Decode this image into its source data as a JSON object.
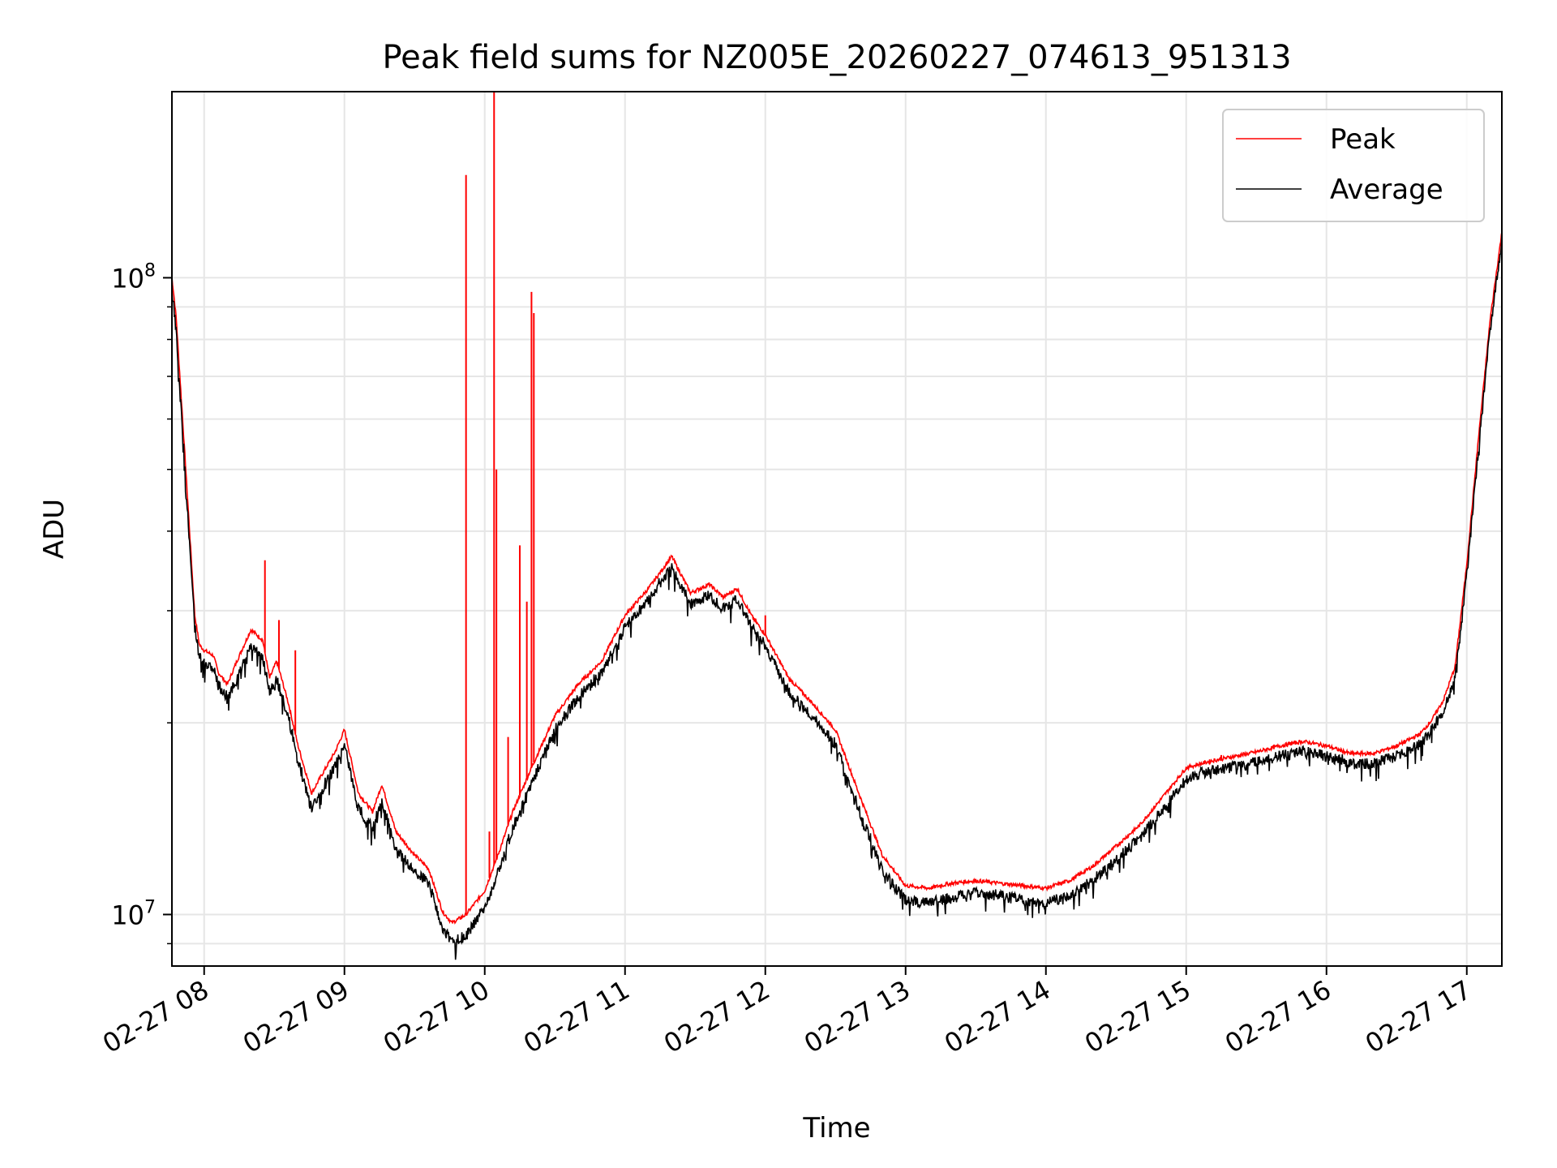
{
  "chart_data": {
    "type": "line",
    "title": "Peak field sums for NZ005E_20260227_074613_951313",
    "xlabel": "Time",
    "ylabel": "ADU",
    "yscale": "log",
    "ylim": [
      8300000,
      196000000
    ],
    "xlim": [
      "2026-02-27T07:46:13",
      "2026-02-27T17:15:00"
    ],
    "x_ticks": [
      "02-27 08",
      "02-27 09",
      "02-27 10",
      "02-27 11",
      "02-27 12",
      "02-27 13",
      "02-27 14",
      "02-27 15",
      "02-27 16",
      "02-27 17"
    ],
    "y_ticks": [
      {
        "value": 10000000,
        "base": "10",
        "exp": "7"
      },
      {
        "value": 100000000,
        "base": "10",
        "exp": "8"
      }
    ],
    "grid": true,
    "legend": {
      "position": "top-right",
      "entries": [
        "Peak",
        "Average"
      ]
    },
    "colors": {
      "Peak": "#ff0000",
      "Average": "#000000"
    },
    "series": [
      {
        "name": "Average",
        "x": [
          "2026-02-27T07:46",
          "2026-02-27T07:48",
          "2026-02-27T07:52",
          "2026-02-27T07:56",
          "2026-02-27T07:58",
          "2026-02-27T08:00",
          "2026-02-27T08:04",
          "2026-02-27T08:06",
          "2026-02-27T08:10",
          "2026-02-27T08:14",
          "2026-02-27T08:20",
          "2026-02-27T08:25",
          "2026-02-27T08:28",
          "2026-02-27T08:31",
          "2026-02-27T08:36",
          "2026-02-27T08:40",
          "2026-02-27T08:46",
          "2026-02-27T08:50",
          "2026-02-27T08:56",
          "2026-02-27T09:00",
          "2026-02-27T09:06",
          "2026-02-27T09:12",
          "2026-02-27T09:16",
          "2026-02-27T09:22",
          "2026-02-27T09:30",
          "2026-02-27T09:36",
          "2026-02-27T09:42",
          "2026-02-27T09:46",
          "2026-02-27T09:52",
          "2026-02-27T10:00",
          "2026-02-27T10:06",
          "2026-02-27T10:12",
          "2026-02-27T10:20",
          "2026-02-27T10:30",
          "2026-02-27T10:40",
          "2026-02-27T10:50",
          "2026-02-27T11:00",
          "2026-02-27T11:10",
          "2026-02-27T11:20",
          "2026-02-27T11:28",
          "2026-02-27T11:36",
          "2026-02-27T11:42",
          "2026-02-27T11:48",
          "2026-02-27T11:54",
          "2026-02-27T12:00",
          "2026-02-27T12:10",
          "2026-02-27T12:20",
          "2026-02-27T12:30",
          "2026-02-27T12:40",
          "2026-02-27T12:50",
          "2026-02-27T13:00",
          "2026-02-27T13:10",
          "2026-02-27T13:20",
          "2026-02-27T13:30",
          "2026-02-27T13:40",
          "2026-02-27T13:50",
          "2026-02-27T14:00",
          "2026-02-27T14:10",
          "2026-02-27T14:20",
          "2026-02-27T14:30",
          "2026-02-27T14:40",
          "2026-02-27T14:50",
          "2026-02-27T15:00",
          "2026-02-27T15:10",
          "2026-02-27T15:20",
          "2026-02-27T15:30",
          "2026-02-27T15:40",
          "2026-02-27T15:50",
          "2026-02-27T16:00",
          "2026-02-27T16:10",
          "2026-02-27T16:20",
          "2026-02-27T16:30",
          "2026-02-27T16:40",
          "2026-02-27T16:45",
          "2026-02-27T16:50",
          "2026-02-27T16:55",
          "2026-02-27T17:00",
          "2026-02-27T17:05",
          "2026-02-27T17:10",
          "2026-02-27T17:15"
        ],
        "values": [
          100000000,
          85000000,
          50000000,
          29000000,
          26000000,
          25500000,
          25000000,
          23500000,
          22500000,
          24000000,
          27000000,
          26000000,
          23000000,
          24000000,
          21000000,
          18000000,
          15000000,
          16000000,
          17500000,
          19000000,
          15000000,
          14000000,
          15500000,
          13000000,
          12000000,
          11500000,
          9800000,
          9300000,
          9500000,
          10500000,
          12000000,
          14000000,
          16500000,
          20000000,
          22500000,
          24500000,
          29000000,
          32000000,
          36000000,
          31500000,
          32500000,
          31000000,
          32000000,
          29000000,
          27000000,
          23000000,
          21000000,
          19000000,
          15000000,
          12000000,
          10800000,
          10700000,
          10900000,
          11100000,
          11000000,
          10800000,
          10700000,
          11000000,
          11600000,
          12500000,
          13500000,
          15000000,
          16800000,
          17200000,
          17500000,
          17800000,
          18200000,
          18500000,
          18200000,
          17700000,
          17700000,
          18200000,
          19000000,
          20000000,
          21500000,
          24000000,
          35000000,
          55000000,
          85000000,
          117000000
        ]
      },
      {
        "name": "Peak",
        "x": [
          "2026-02-27T07:46",
          "2026-02-27T07:48",
          "2026-02-27T07:52",
          "2026-02-27T07:56",
          "2026-02-27T07:58",
          "2026-02-27T08:00",
          "2026-02-27T08:04",
          "2026-02-27T08:06",
          "2026-02-27T08:10",
          "2026-02-27T08:14",
          "2026-02-27T08:20",
          "2026-02-27T08:25",
          "2026-02-27T08:28",
          "2026-02-27T08:31",
          "2026-02-27T08:36",
          "2026-02-27T08:40",
          "2026-02-27T08:46",
          "2026-02-27T08:50",
          "2026-02-27T08:56",
          "2026-02-27T09:00",
          "2026-02-27T09:06",
          "2026-02-27T09:12",
          "2026-02-27T09:16",
          "2026-02-27T09:22",
          "2026-02-27T09:30",
          "2026-02-27T09:36",
          "2026-02-27T09:42",
          "2026-02-27T09:46",
          "2026-02-27T09:52",
          "2026-02-27T10:00",
          "2026-02-27T10:06",
          "2026-02-27T10:12",
          "2026-02-27T10:20",
          "2026-02-27T10:30",
          "2026-02-27T10:40",
          "2026-02-27T10:50",
          "2026-02-27T11:00",
          "2026-02-27T11:10",
          "2026-02-27T11:20",
          "2026-02-27T11:28",
          "2026-02-27T11:36",
          "2026-02-27T11:42",
          "2026-02-27T11:48",
          "2026-02-27T11:54",
          "2026-02-27T12:00",
          "2026-02-27T12:10",
          "2026-02-27T12:20",
          "2026-02-27T12:30",
          "2026-02-27T12:40",
          "2026-02-27T12:50",
          "2026-02-27T13:00",
          "2026-02-27T13:10",
          "2026-02-27T13:20",
          "2026-02-27T13:30",
          "2026-02-27T13:40",
          "2026-02-27T13:50",
          "2026-02-27T14:00",
          "2026-02-27T14:10",
          "2026-02-27T14:20",
          "2026-02-27T14:30",
          "2026-02-27T14:40",
          "2026-02-27T14:50",
          "2026-02-27T15:00",
          "2026-02-27T15:10",
          "2026-02-27T15:20",
          "2026-02-27T15:30",
          "2026-02-27T15:40",
          "2026-02-27T15:50",
          "2026-02-27T16:00",
          "2026-02-27T16:10",
          "2026-02-27T16:20",
          "2026-02-27T16:30",
          "2026-02-27T16:40",
          "2026-02-27T16:45",
          "2026-02-27T16:50",
          "2026-02-27T16:55",
          "2026-02-27T17:00",
          "2026-02-27T17:05",
          "2026-02-27T17:10",
          "2026-02-27T17:15"
        ],
        "values": [
          102000000,
          87000000,
          51000000,
          29500000,
          26500000,
          26000000,
          25500000,
          24000000,
          23000000,
          25000000,
          28000000,
          27000000,
          23500000,
          25000000,
          21500000,
          18500000,
          15500000,
          16500000,
          18000000,
          19500000,
          15500000,
          14500000,
          16000000,
          13500000,
          12400000,
          11800000,
          10100000,
          9700000,
          10000000,
          10900000,
          12500000,
          14500000,
          17000000,
          20500000,
          23000000,
          25000000,
          29500000,
          32500000,
          36500000,
          32000000,
          33000000,
          31500000,
          32500000,
          29500000,
          27500000,
          23500000,
          21500000,
          19500000,
          15500000,
          12400000,
          11100000,
          11000000,
          11200000,
          11300000,
          11200000,
          11100000,
          11000000,
          11300000,
          11900000,
          12800000,
          13800000,
          15300000,
          17000000,
          17400000,
          17700000,
          18000000,
          18400000,
          18700000,
          18400000,
          17900000,
          17900000,
          18400000,
          19200000,
          20200000,
          21700000,
          24500000,
          35500000,
          56000000,
          86000000,
          118000000
        ]
      }
    ],
    "peak_spikes": [
      {
        "x": "2026-02-27T08:26",
        "value": 36000000
      },
      {
        "x": "2026-02-27T08:32",
        "value": 29000000
      },
      {
        "x": "2026-02-27T08:39",
        "value": 26000000
      },
      {
        "x": "2026-02-27T09:52",
        "value": 145000000
      },
      {
        "x": "2026-02-27T10:02",
        "value": 13500000
      },
      {
        "x": "2026-02-27T10:04",
        "value": 196000000
      },
      {
        "x": "2026-02-27T10:05",
        "value": 50000000
      },
      {
        "x": "2026-02-27T10:10",
        "value": 19000000
      },
      {
        "x": "2026-02-27T10:15",
        "value": 38000000
      },
      {
        "x": "2026-02-27T10:18",
        "value": 31000000
      },
      {
        "x": "2026-02-27T10:20",
        "value": 95000000
      },
      {
        "x": "2026-02-27T10:21",
        "value": 88000000
      },
      {
        "x": "2026-02-27T12:00",
        "value": 29500000
      },
      {
        "x": "2026-02-27T15:15",
        "value": 17800000
      }
    ]
  }
}
